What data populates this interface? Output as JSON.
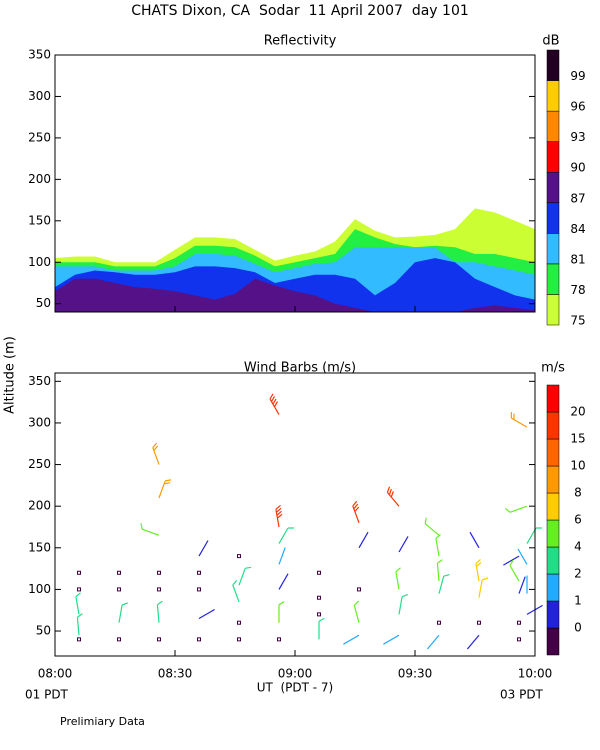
{
  "title": "CHATS Dixon, CA  Sodar  11 April 2007  day 101",
  "ylabel": "Altitude (m)",
  "xlabel": "UT  (PDT - 7)",
  "x_left_note": "01 PDT",
  "x_right_note": "03 PDT",
  "footnote": "Prelimiary Data",
  "chart_data": [
    {
      "type": "area",
      "title": "Reflectivity",
      "x": [
        480,
        485,
        490,
        495,
        500,
        505,
        510,
        515,
        520,
        525,
        530,
        535,
        540,
        545,
        550,
        555,
        560,
        565,
        570,
        575,
        580,
        585,
        590,
        595,
        600
      ],
      "xlim": [
        480,
        600
      ],
      "ylim": [
        40,
        350
      ],
      "yticks": [
        50,
        100,
        150,
        200,
        250,
        300,
        350
      ],
      "colorbar": {
        "label": "dB",
        "ticks": [
          75,
          78,
          81,
          84,
          87,
          90,
          93,
          96,
          99
        ],
        "colors": [
          "#ccff33",
          "#22ee44",
          "#33bbff",
          "#1133ee",
          "#551188",
          "#ff0000",
          "#ff8800",
          "#ffcc00",
          "#220022"
        ]
      },
      "series": [
        {
          "values": [
            105,
            107,
            107,
            100,
            100,
            100,
            115,
            130,
            130,
            128,
            115,
            102,
            108,
            113,
            125,
            152,
            138,
            130,
            131,
            133,
            140,
            165,
            160,
            150,
            140
          ]
        },
        {
          "values": [
            100,
            100,
            100,
            95,
            95,
            95,
            105,
            120,
            120,
            118,
            108,
            95,
            100,
            105,
            110,
            140,
            130,
            122,
            118,
            120,
            118,
            110,
            110,
            105,
            100
          ]
        },
        {
          "values": [
            95,
            95,
            95,
            90,
            90,
            90,
            95,
            110,
            110,
            108,
            98,
            88,
            93,
            98,
            100,
            118,
            118,
            118,
            118,
            118,
            100,
            100,
            95,
            90,
            85
          ]
        },
        {
          "values": [
            70,
            85,
            90,
            88,
            85,
            85,
            88,
            95,
            95,
            93,
            88,
            75,
            80,
            85,
            85,
            80,
            60,
            75,
            100,
            105,
            100,
            80,
            70,
            60,
            55
          ]
        },
        {
          "values": [
            65,
            80,
            80,
            75,
            70,
            68,
            65,
            60,
            55,
            62,
            80,
            72,
            65,
            60,
            50,
            45,
            40,
            40,
            40,
            40,
            40,
            45,
            48,
            45,
            42
          ]
        }
      ]
    },
    {
      "type": "barbs",
      "title": "Wind Barbs (m/s)",
      "xlim": [
        480,
        600
      ],
      "xticks": [
        {
          "value": 480,
          "label": "08:00"
        },
        {
          "value": 510,
          "label": "08:30"
        },
        {
          "value": 540,
          "label": "09:00"
        },
        {
          "value": 570,
          "label": "09:30"
        },
        {
          "value": 600,
          "label": "10:00"
        }
      ],
      "ylim": [
        20,
        360
      ],
      "yticks": [
        50,
        100,
        150,
        200,
        250,
        300,
        350
      ],
      "colorbar": {
        "label": "m/s",
        "ticks": [
          0,
          1,
          2,
          4,
          6,
          8,
          10,
          15,
          20
        ],
        "colors": [
          "#440044",
          "#2222dd",
          "#22aaff",
          "#22dd88",
          "#66ee22",
          "#ffcc00",
          "#ff9900",
          "#ff6600",
          "#ff3300",
          "#ff0000"
        ]
      },
      "barbs": {
        "x": [
          486,
          486,
          486,
          486,
          486,
          496,
          496,
          496,
          496,
          506,
          506,
          506,
          506,
          506,
          506,
          506,
          516,
          516,
          516,
          516,
          516,
          526,
          526,
          526,
          526,
          526,
          536,
          536,
          536,
          536,
          536,
          536,
          536,
          546,
          546,
          546,
          546,
          556,
          556,
          556,
          556,
          556,
          566,
          566,
          566,
          566,
          566,
          576,
          576,
          576,
          576,
          576,
          576,
          586,
          586,
          586,
          586,
          586,
          596,
          596,
          596,
          596,
          596,
          598,
          598,
          598,
          598,
          598,
          598
        ],
        "y": [
          120,
          100,
          70,
          45,
          40,
          120,
          100,
          60,
          40,
          120,
          100,
          60,
          40,
          250,
          210,
          165,
          120,
          100,
          65,
          140,
          40,
          140,
          105,
          85,
          60,
          40,
          155,
          130,
          100,
          60,
          40,
          310,
          175,
          120,
          90,
          70,
          40,
          180,
          150,
          100,
          60,
          45,
          200,
          145,
          100,
          70,
          45,
          165,
          140,
          110,
          95,
          60,
          45,
          150,
          110,
          90,
          60,
          45,
          140,
          110,
          95,
          60,
          40,
          295,
          200,
          155,
          130,
          95,
          70
        ],
        "speed": [
          0,
          0,
          3,
          4,
          0,
          0,
          0,
          4,
          0,
          0,
          0,
          4,
          0,
          9,
          9,
          6,
          0,
          0,
          1,
          1,
          0,
          0,
          3,
          4,
          0,
          0,
          3,
          2,
          1,
          5,
          0,
          20,
          19,
          0,
          0,
          0,
          4,
          17,
          1,
          0,
          5,
          2,
          16,
          1,
          6,
          3,
          2,
          5,
          6,
          6,
          4,
          0,
          2,
          1,
          8,
          7,
          0,
          1,
          1,
          6,
          1,
          0,
          0,
          10,
          6,
          4,
          2,
          2,
          1
        ],
        "direction": [
          0,
          0,
          350,
          355,
          0,
          0,
          0,
          10,
          0,
          0,
          0,
          355,
          0,
          340,
          20,
          290,
          0,
          0,
          60,
          30,
          0,
          0,
          20,
          340,
          0,
          0,
          30,
          20,
          30,
          0,
          0,
          330,
          350,
          0,
          0,
          0,
          0,
          340,
          30,
          0,
          345,
          240,
          320,
          30,
          350,
          10,
          240,
          310,
          350,
          355,
          15,
          0,
          220,
          330,
          350,
          10,
          0,
          220,
          240,
          330,
          20,
          0,
          0,
          300,
          250,
          30,
          330,
          0,
          60
        ]
      }
    }
  ]
}
